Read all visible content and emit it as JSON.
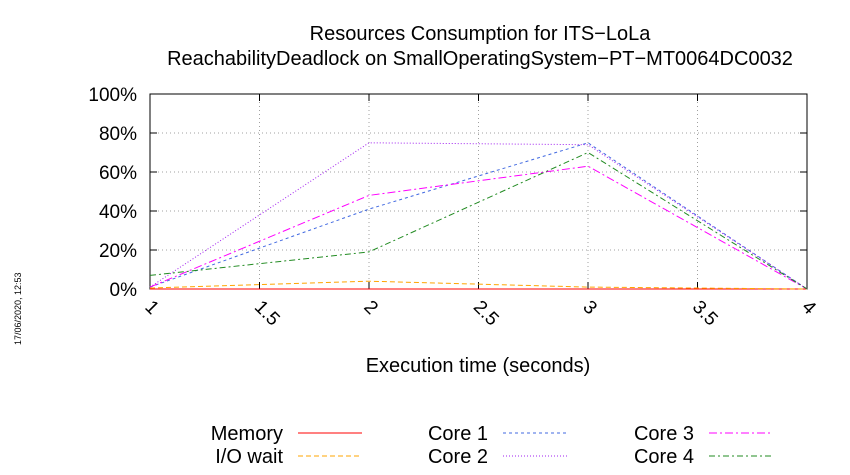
{
  "timestamp": "17/06/2020, 12:53",
  "chart_data": {
    "type": "line",
    "title": "Resources Consumption for ITS−LoLa",
    "subtitle": "ReachabilityDeadlock on SmallOperatingSystem−PT−MT0064DC0032",
    "xlabel": "Execution time (seconds)",
    "ylabel": "",
    "xlim": [
      1,
      4
    ],
    "ylim": [
      0,
      100
    ],
    "x_ticks": [
      "1",
      "1.5",
      "2",
      "2.5",
      "3",
      "3.5",
      "4"
    ],
    "y_ticks": [
      "0%",
      "20%",
      "40%",
      "60%",
      "80%",
      "100%"
    ],
    "grid": true,
    "legend_position": "bottom",
    "x": [
      1,
      2,
      3,
      4
    ],
    "series": [
      {
        "name": "Memory",
        "values": [
          0,
          0,
          0,
          0
        ],
        "color": "#ff0000",
        "dash": ""
      },
      {
        "name": "I/O wait",
        "values": [
          0.5,
          4,
          1,
          0
        ],
        "color": "#ffa500",
        "dash": "5,3"
      },
      {
        "name": "Core 1",
        "values": [
          1,
          41,
          75,
          0
        ],
        "color": "#4169e1",
        "dash": "3,3"
      },
      {
        "name": "Core 2",
        "values": [
          1,
          75,
          74,
          0
        ],
        "color": "#a020f0",
        "dash": "1,2"
      },
      {
        "name": "Core 3",
        "values": [
          1,
          48,
          63,
          0
        ],
        "color": "#ff00ff",
        "dash": "8,3,2,3"
      },
      {
        "name": "Core 4",
        "values": [
          7,
          19,
          70,
          0
        ],
        "color": "#228b22",
        "dash": "6,3,2,3"
      }
    ]
  }
}
